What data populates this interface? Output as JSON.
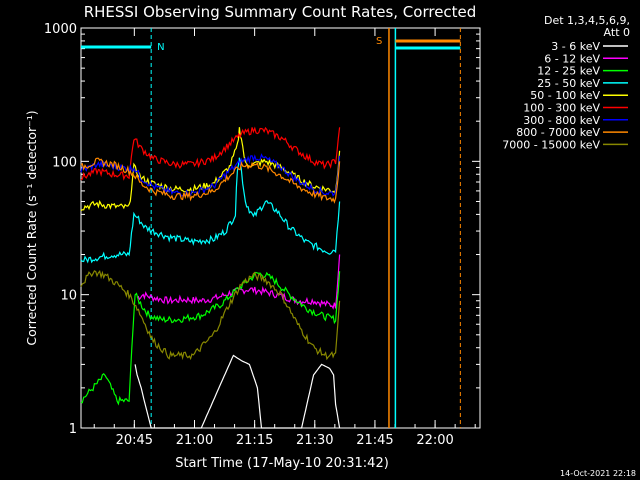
{
  "chart_data": {
    "type": "line",
    "title": "RHESSI Observing Summary Count Rates, Corrected",
    "xlabel": "Start Time (17-May-10 20:31:42)",
    "ylabel": "Corrected Count Rate (s⁻¹ detector⁻¹)",
    "yscale": "log",
    "ylim": [
      1,
      1000
    ],
    "xlim_minutes_after_2031": [
      0,
      41
    ],
    "x_ticks": [
      "20:45",
      "21:00",
      "21:15",
      "21:30",
      "21:45",
      "22:00"
    ],
    "y_ticks": [
      "1",
      "10",
      "100",
      "1000"
    ],
    "legend_title": [
      "Det 1,3,4,5,6,9,",
      "Att 0"
    ],
    "legend_position": "right",
    "series": [
      {
        "name": "3 - 6 keV",
        "color": "#ffffff",
        "values": [
          [
            13.5,
            3.0
          ],
          [
            14.0,
            2.5
          ],
          [
            15.0,
            2.0
          ],
          [
            16.0,
            1.5
          ],
          [
            17.5,
            1.0
          ],
          [
            30.0,
            1.0
          ],
          [
            35.0,
            2.2
          ],
          [
            38.0,
            3.5
          ],
          [
            40.0,
            3.2
          ],
          [
            42.0,
            3.0
          ],
          [
            44.0,
            2.0
          ],
          [
            45.0,
            1.0
          ],
          [
            48.0,
            1.0
          ],
          [
            55.0,
            1.0
          ],
          [
            58.0,
            2.5
          ],
          [
            60.0,
            3.0
          ],
          [
            62.0,
            2.8
          ],
          [
            63.0,
            2.5
          ],
          [
            63.5,
            1.5
          ],
          [
            64.5,
            1.0
          ]
        ]
      },
      {
        "name": "6 - 12 keV",
        "color": "#ff00ff",
        "values": [
          [
            14.0,
            9.5
          ],
          [
            15.5,
            10.0
          ],
          [
            18.0,
            9.5
          ],
          [
            22.0,
            9.0
          ],
          [
            26.0,
            9.2
          ],
          [
            30.0,
            9.0
          ],
          [
            34.0,
            9.5
          ],
          [
            38.0,
            10.5
          ],
          [
            42.0,
            11.0
          ],
          [
            46.0,
            10.5
          ],
          [
            50.0,
            9.8
          ],
          [
            54.0,
            9.0
          ],
          [
            58.0,
            9.0
          ],
          [
            61.0,
            8.5
          ],
          [
            63.5,
            8.3
          ],
          [
            64.5,
            20.0
          ]
        ]
      },
      {
        "name": "12 - 25 keV",
        "color": "#00ff00",
        "values": [
          [
            0.0,
            1.6
          ],
          [
            3.0,
            2.0
          ],
          [
            6.0,
            2.5
          ],
          [
            9.0,
            1.6
          ],
          [
            12.0,
            1.6
          ],
          [
            13.0,
            6.0
          ],
          [
            13.5,
            10.0
          ],
          [
            15.5,
            8.0
          ],
          [
            17.0,
            7.0
          ],
          [
            20.0,
            6.5
          ],
          [
            24.0,
            6.5
          ],
          [
            30.0,
            7.0
          ],
          [
            35.0,
            8.5
          ],
          [
            39.0,
            11.0
          ],
          [
            42.0,
            13.0
          ],
          [
            44.0,
            14.5
          ],
          [
            46.0,
            14.0
          ],
          [
            48.0,
            13.0
          ],
          [
            52.0,
            10.0
          ],
          [
            56.0,
            8.0
          ],
          [
            60.0,
            7.0
          ],
          [
            63.5,
            6.5
          ],
          [
            64.5,
            15.0
          ]
        ]
      },
      {
        "name": "25 - 50 keV",
        "color": "#00ffff",
        "values": [
          [
            0.0,
            18.0
          ],
          [
            4.0,
            19.0
          ],
          [
            8.0,
            20.0
          ],
          [
            12.0,
            20.0
          ],
          [
            13.2,
            40.0
          ],
          [
            14.0,
            38.0
          ],
          [
            16.0,
            32.0
          ],
          [
            18.0,
            30.0
          ],
          [
            22.0,
            27.0
          ],
          [
            28.0,
            25.0
          ],
          [
            33.0,
            26.0
          ],
          [
            36.0,
            30.0
          ],
          [
            38.5,
            40.0
          ],
          [
            39.0,
            90.0
          ],
          [
            39.5,
            110.0
          ],
          [
            40.0,
            85.0
          ],
          [
            41.0,
            50.0
          ],
          [
            43.0,
            38.0
          ],
          [
            46.0,
            50.0
          ],
          [
            49.0,
            42.0
          ],
          [
            52.0,
            32.0
          ],
          [
            56.0,
            25.0
          ],
          [
            60.0,
            22.0
          ],
          [
            62.0,
            21.0
          ],
          [
            63.5,
            22.0
          ],
          [
            64.5,
            50.0
          ]
        ]
      },
      {
        "name": "50 - 100 keV",
        "color": "#ffff00",
        "values": [
          [
            0.0,
            45.0
          ],
          [
            4.0,
            48.0
          ],
          [
            8.0,
            46.0
          ],
          [
            12.0,
            45.0
          ],
          [
            13.2,
            90.0
          ],
          [
            15.0,
            75.0
          ],
          [
            18.0,
            68.0
          ],
          [
            23.0,
            62.0
          ],
          [
            28.0,
            62.0
          ],
          [
            33.0,
            68.0
          ],
          [
            37.0,
            90.0
          ],
          [
            39.0,
            130.0
          ],
          [
            39.5,
            175.0
          ],
          [
            40.0,
            150.0
          ],
          [
            41.0,
            95.0
          ],
          [
            43.0,
            95.0
          ],
          [
            46.0,
            100.0
          ],
          [
            50.0,
            90.0
          ],
          [
            54.0,
            75.0
          ],
          [
            58.0,
            65.0
          ],
          [
            61.0,
            62.0
          ],
          [
            63.5,
            60.0
          ],
          [
            64.5,
            120.0
          ]
        ]
      },
      {
        "name": "100 - 300 keV",
        "color": "#ff0000",
        "values": [
          [
            0.0,
            75.0
          ],
          [
            4.0,
            85.0
          ],
          [
            8.0,
            80.0
          ],
          [
            12.0,
            78.0
          ],
          [
            13.2,
            150.0
          ],
          [
            15.0,
            125.0
          ],
          [
            18.0,
            105.0
          ],
          [
            23.0,
            95.0
          ],
          [
            28.0,
            95.0
          ],
          [
            33.0,
            105.0
          ],
          [
            37.0,
            135.0
          ],
          [
            40.0,
            160.0
          ],
          [
            43.0,
            172.0
          ],
          [
            46.0,
            170.0
          ],
          [
            50.0,
            150.0
          ],
          [
            54.0,
            120.0
          ],
          [
            58.0,
            100.0
          ],
          [
            61.0,
            93.0
          ],
          [
            63.5,
            100.0
          ],
          [
            64.5,
            180.0
          ]
        ]
      },
      {
        "name": "300 - 800 keV",
        "color": "#0000ff",
        "values": [
          [
            0.0,
            85.0
          ],
          [
            4.0,
            95.0
          ],
          [
            8.0,
            92.0
          ],
          [
            12.0,
            88.0
          ],
          [
            13.2,
            90.0
          ],
          [
            15.0,
            75.0
          ],
          [
            18.0,
            65.0
          ],
          [
            23.0,
            58.0
          ],
          [
            28.0,
            58.0
          ],
          [
            33.0,
            65.0
          ],
          [
            37.0,
            85.0
          ],
          [
            40.0,
            100.0
          ],
          [
            43.0,
            108.0
          ],
          [
            46.0,
            105.0
          ],
          [
            50.0,
            90.0
          ],
          [
            54.0,
            72.0
          ],
          [
            58.0,
            62.0
          ],
          [
            61.0,
            58.0
          ],
          [
            63.5,
            58.0
          ],
          [
            64.5,
            110.0
          ]
        ]
      },
      {
        "name": "800 - 7000 keV",
        "color": "#ff8800",
        "values": [
          [
            0.0,
            90.0
          ],
          [
            4.0,
            100.0
          ],
          [
            8.0,
            95.0
          ],
          [
            12.0,
            85.0
          ],
          [
            13.2,
            80.0
          ],
          [
            15.0,
            68.0
          ],
          [
            18.0,
            60.0
          ],
          [
            23.0,
            55.0
          ],
          [
            28.0,
            55.0
          ],
          [
            33.0,
            60.0
          ],
          [
            37.0,
            78.0
          ],
          [
            40.0,
            92.0
          ],
          [
            43.0,
            95.0
          ],
          [
            46.0,
            90.0
          ],
          [
            50.0,
            78.0
          ],
          [
            54.0,
            65.0
          ],
          [
            58.0,
            57.0
          ],
          [
            61.0,
            53.0
          ],
          [
            63.5,
            52.0
          ],
          [
            64.5,
            100.0
          ]
        ]
      },
      {
        "name": "7000 - 15000 keV",
        "color": "#888800",
        "values": [
          [
            0.0,
            12.0
          ],
          [
            3.0,
            15.0
          ],
          [
            6.0,
            14.0
          ],
          [
            9.0,
            12.0
          ],
          [
            12.0,
            10.0
          ],
          [
            14.0,
            8.0
          ],
          [
            16.0,
            6.0
          ],
          [
            18.0,
            4.5
          ],
          [
            22.0,
            3.5
          ],
          [
            28.0,
            3.5
          ],
          [
            33.0,
            5.0
          ],
          [
            37.0,
            8.5
          ],
          [
            40.0,
            12.0
          ],
          [
            43.0,
            14.0
          ],
          [
            46.0,
            13.0
          ],
          [
            50.0,
            10.0
          ],
          [
            54.0,
            6.0
          ],
          [
            58.0,
            4.0
          ],
          [
            61.0,
            3.5
          ],
          [
            63.5,
            3.5
          ],
          [
            64.5,
            9.0
          ]
        ]
      }
    ],
    "annotations": [
      {
        "text": "N",
        "color": "#00ffff"
      },
      {
        "text": "S",
        "color": "#ff8800"
      }
    ],
    "timestamp": "14-Oct-2021 22:18"
  }
}
